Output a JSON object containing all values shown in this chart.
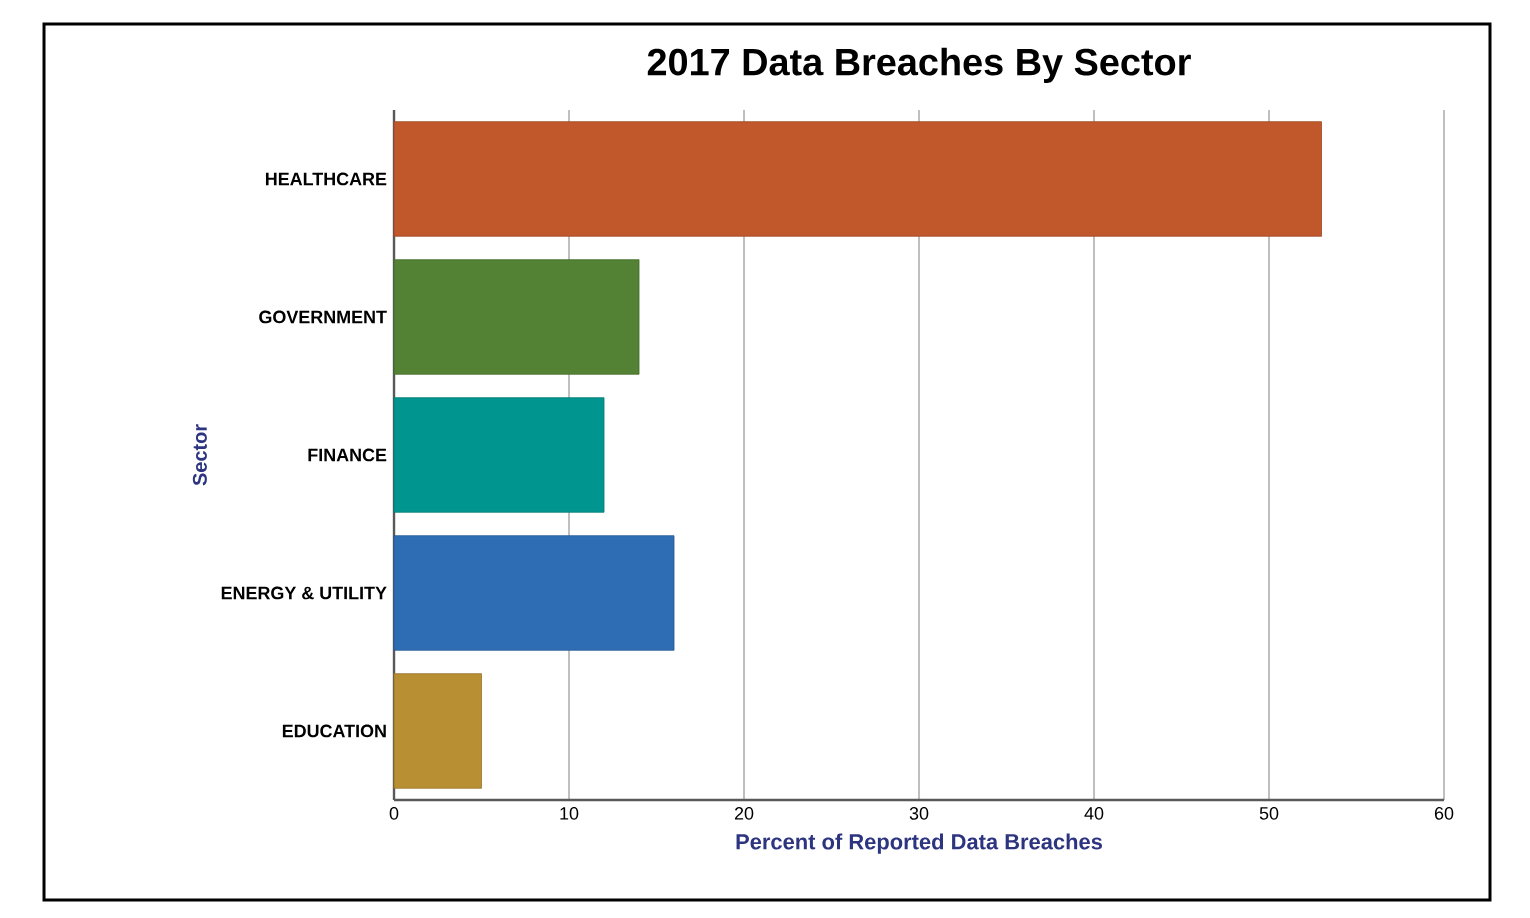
{
  "chart_data": {
    "type": "bar",
    "orientation": "horizontal",
    "title": "2017 Data Breaches By Sector",
    "xlabel": "Percent of Reported Data Breaches",
    "ylabel": "Sector",
    "categories": [
      "HEALTHCARE",
      "GOVERNMENT",
      "FINANCE",
      "ENERGY & UTILITY",
      "EDUCATION"
    ],
    "values": [
      53,
      14,
      12,
      16,
      5
    ],
    "colors": [
      "#c0582b",
      "#548235",
      "#00968f",
      "#2e6db4",
      "#b98f34"
    ],
    "xlim": [
      0,
      60
    ],
    "xticks": [
      0,
      10,
      20,
      30,
      40,
      50,
      60
    ],
    "grid": "x"
  }
}
